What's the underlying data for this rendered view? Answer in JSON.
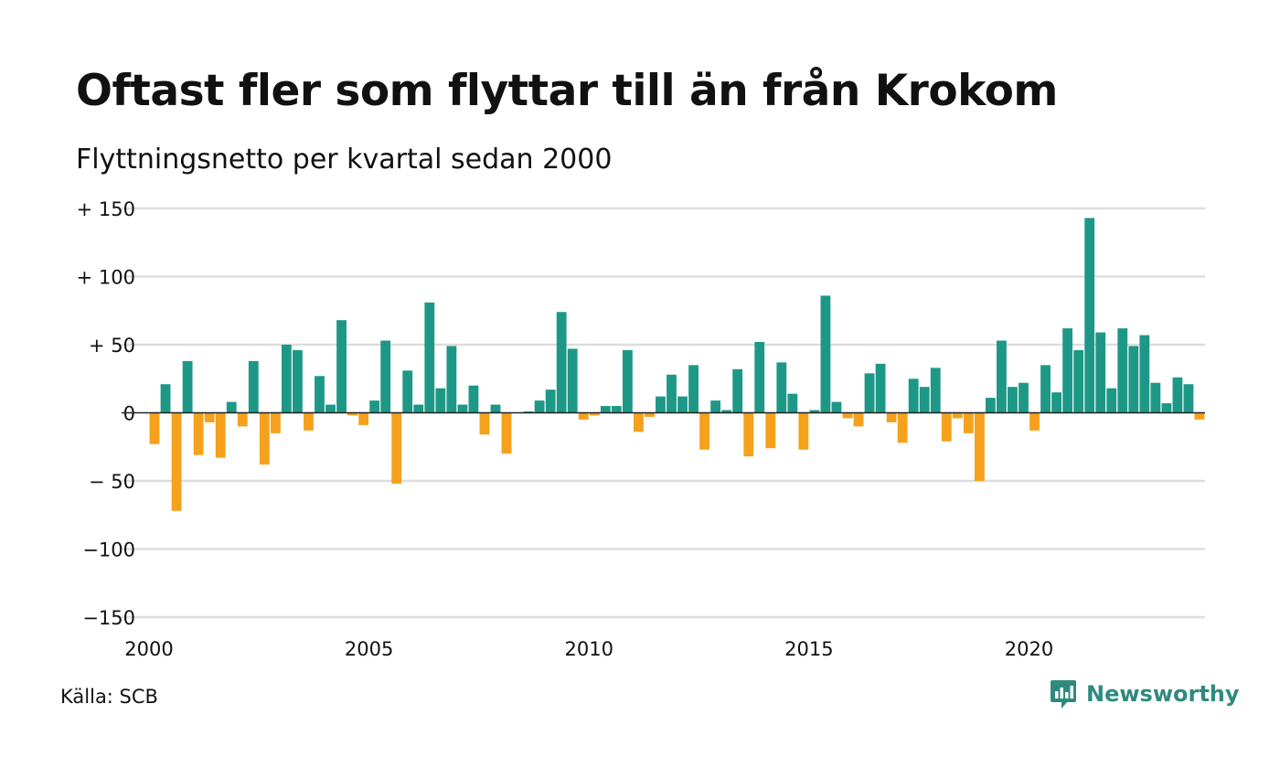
{
  "title": "Oftast fler som flyttar till än från Krokom",
  "subtitle": "Flyttningsnetto per kvartal sedan 2000",
  "source": "Källa: SCB",
  "brand": {
    "name": "Newsworthy",
    "icon": "newsworthy-logo-icon",
    "color": "#2f8a7e"
  },
  "colors": {
    "positive": "#1e9886",
    "negative": "#f5a11c",
    "grid": "#dddddd",
    "zero_line": "#222222"
  },
  "chart_data": {
    "type": "bar",
    "title": "Oftast fler som flyttar till än från Krokom",
    "subtitle": "Flyttningsnetto per kvartal sedan 2000",
    "x_start": 2000,
    "periods_per_year": 4,
    "xlim": [
      2000,
      2024
    ],
    "ylim": [
      -150,
      150
    ],
    "x_ticks": [
      2000,
      2005,
      2010,
      2015,
      2020
    ],
    "x_tick_labels": [
      "2000",
      "2005",
      "2010",
      "2015",
      "2020"
    ],
    "y_ticks": [
      150,
      100,
      50,
      0,
      -50,
      -100,
      -150
    ],
    "y_tick_labels": [
      "+ 150",
      "+ 100",
      "+  50",
      "0",
      "− 50",
      "−100",
      "−150"
    ],
    "grid": true,
    "legend": "none",
    "values": [
      -23,
      21,
      -72,
      38,
      -31,
      -7,
      -33,
      8,
      -10,
      38,
      -38,
      -15,
      50,
      46,
      -13,
      27,
      6,
      68,
      -2,
      -9,
      9,
      53,
      -52,
      31,
      6,
      81,
      18,
      49,
      6,
      20,
      -16,
      6,
      -30,
      0,
      1,
      9,
      17,
      74,
      47,
      -5,
      -2,
      5,
      5,
      46,
      -14,
      -3,
      12,
      28,
      12,
      35,
      -27,
      9,
      2,
      32,
      -32,
      52,
      -26,
      37,
      14,
      -27,
      2,
      86,
      8,
      -4,
      -10,
      29,
      36,
      -7,
      -22,
      25,
      19,
      33,
      -21,
      -4,
      -15,
      -50,
      11,
      53,
      19,
      22,
      -13,
      35,
      15,
      62,
      46,
      143,
      59,
      18,
      62,
      49,
      57,
      22,
      7,
      26,
      21,
      -5
    ]
  }
}
